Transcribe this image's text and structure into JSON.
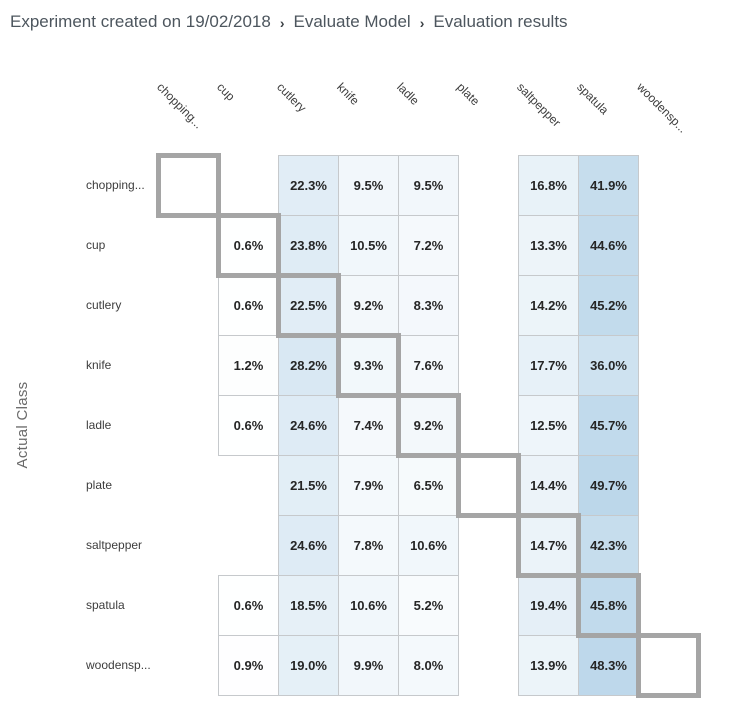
{
  "breadcrumb": {
    "separator": "›",
    "items": [
      {
        "label": "Experiment created on 19/02/2018"
      },
      {
        "label": "Evaluate Model"
      },
      {
        "label": "Evaluation results"
      }
    ]
  },
  "chart_data": {
    "type": "heatmap",
    "ylabel": "Actual Class",
    "unit": "%",
    "x_categories": [
      "chopping...",
      "cup",
      "cutlery",
      "knife",
      "ladle",
      "plate",
      "saltpepper",
      "spatula",
      "woodensp..."
    ],
    "y_categories": [
      "chopping...",
      "cup",
      "cutlery",
      "knife",
      "ladle",
      "plate",
      "saltpepper",
      "spatula",
      "woodensp..."
    ],
    "values": [
      [
        null,
        null,
        22.3,
        9.5,
        9.5,
        null,
        16.8,
        41.9,
        null
      ],
      [
        null,
        0.6,
        23.8,
        10.5,
        7.2,
        null,
        13.3,
        44.6,
        null
      ],
      [
        null,
        0.6,
        22.5,
        9.2,
        8.3,
        null,
        14.2,
        45.2,
        null
      ],
      [
        null,
        1.2,
        28.2,
        9.3,
        7.6,
        null,
        17.7,
        36.0,
        null
      ],
      [
        null,
        0.6,
        24.6,
        7.4,
        9.2,
        null,
        12.5,
        45.7,
        null
      ],
      [
        null,
        null,
        21.5,
        7.9,
        6.5,
        null,
        14.4,
        49.7,
        null
      ],
      [
        null,
        null,
        24.6,
        7.8,
        10.6,
        null,
        14.7,
        42.3,
        null
      ],
      [
        null,
        0.6,
        18.5,
        10.6,
        5.2,
        null,
        19.4,
        45.8,
        null
      ],
      [
        null,
        0.9,
        19.0,
        9.9,
        8.0,
        null,
        13.9,
        48.3,
        null
      ]
    ],
    "diagonal_outlined": true,
    "value_range": [
      0,
      100
    ]
  },
  "colors": {
    "heat_max": "#78afd5",
    "heat_min": "#ffffff",
    "cell_border": "#c6c9cc",
    "diagonal_border": "#a5a5a5",
    "value_text": "#262626",
    "label_text": "#3d3d3d",
    "axis_label_text": "#6a6a6a",
    "breadcrumb_text": "#4d565e"
  }
}
